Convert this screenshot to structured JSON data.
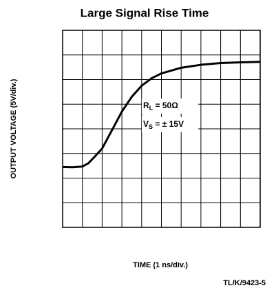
{
  "chart_data": {
    "type": "line",
    "title": "Large Signal Rise Time",
    "xlabel": "TIME (1 ns/div.)",
    "ylabel": "OUTPUT VOLTAGE (5V/div.)",
    "footer": "TL/K/9423-5",
    "annotations": [
      {
        "main": "R",
        "sub": "L",
        "rest": " = 50Ω"
      },
      {
        "main": "V",
        "sub": "S",
        "rest": " = ± 15V"
      }
    ],
    "x": [
      0,
      0.5,
      1.0,
      1.3,
      1.6,
      2.0,
      2.5,
      3.0,
      3.5,
      4.0,
      4.5,
      5,
      6,
      7,
      8,
      9,
      10
    ],
    "series": [
      {
        "color": "#000000",
        "values": [
          2.45,
          2.44,
          2.47,
          2.6,
          2.85,
          3.2,
          3.95,
          4.7,
          5.3,
          5.75,
          6.05,
          6.25,
          6.48,
          6.6,
          6.67,
          6.7,
          6.72
        ]
      }
    ],
    "xlim": [
      0,
      10
    ],
    "ylim": [
      0,
      8
    ],
    "xticks": [
      0,
      1,
      2,
      3,
      4,
      5,
      6,
      7,
      8,
      9,
      10
    ],
    "yticks": [
      0,
      1,
      2,
      3,
      4,
      5,
      6,
      7,
      8
    ],
    "grid": true
  }
}
